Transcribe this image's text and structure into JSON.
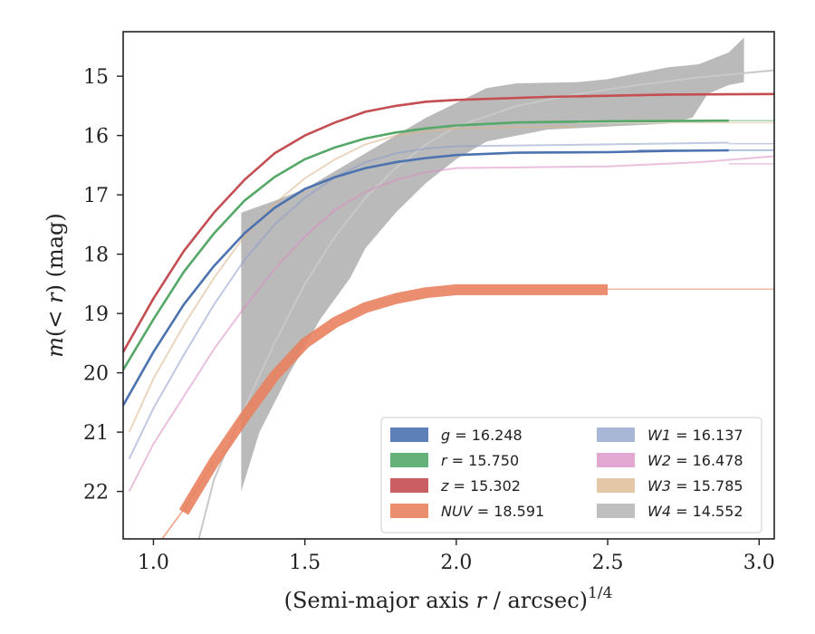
{
  "chart_data": {
    "type": "line",
    "xlabel": "(Semi-major axis r / arcsec)^(1/4)",
    "xlabel_parts": {
      "main": "(Semi-major axis ",
      "var": "r",
      "mid": " / arcsec)",
      "sup": "1/4"
    },
    "ylabel": "m(< r) (mag)",
    "ylabel_parts": {
      "m": "m",
      "open": "(",
      "lt": "< ",
      "r": "r",
      "close": ")",
      "unit": " (mag)"
    },
    "xlim": [
      0.9,
      3.05
    ],
    "ylim": [
      22.8,
      14.25
    ],
    "y_inverted": true,
    "x_ticks": [
      1.0,
      1.5,
      2.0,
      2.5,
      3.0
    ],
    "x_tick_labels": [
      "1.0",
      "1.5",
      "2.0",
      "2.5",
      "3.0"
    ],
    "y_ticks": [
      15,
      16,
      17,
      18,
      19,
      20,
      21,
      22
    ],
    "y_tick_labels": [
      "15",
      "16",
      "17",
      "18",
      "19",
      "20",
      "21",
      "22"
    ],
    "grid": false,
    "legend_position": "lower-right",
    "legend_columns": 2,
    "series": [
      {
        "key": "g",
        "name": "g = 16.248",
        "name_var": "g",
        "name_val": " = 16.248",
        "color": "#4c72b0",
        "total_mag": 16.248,
        "points": [
          [
            0.9,
            20.55
          ],
          [
            1.0,
            19.65
          ],
          [
            1.1,
            18.85
          ],
          [
            1.2,
            18.2
          ],
          [
            1.3,
            17.65
          ],
          [
            1.4,
            17.22
          ],
          [
            1.5,
            16.9
          ],
          [
            1.6,
            16.7
          ],
          [
            1.7,
            16.55
          ],
          [
            1.8,
            16.45
          ],
          [
            1.9,
            16.38
          ],
          [
            2.0,
            16.33
          ],
          [
            2.2,
            16.29
          ],
          [
            2.5,
            16.28
          ],
          [
            2.7,
            16.26
          ],
          [
            2.9,
            16.25
          ]
        ],
        "width": 2.5,
        "band": 0.06
      },
      {
        "key": "r",
        "name": "r = 15.750",
        "name_var": "r",
        "name_val": " = 15.750",
        "color": "#55a868",
        "total_mag": 15.75,
        "points": [
          [
            0.9,
            19.95
          ],
          [
            1.0,
            19.1
          ],
          [
            1.1,
            18.3
          ],
          [
            1.2,
            17.65
          ],
          [
            1.3,
            17.1
          ],
          [
            1.4,
            16.7
          ],
          [
            1.5,
            16.4
          ],
          [
            1.6,
            16.2
          ],
          [
            1.7,
            16.05
          ],
          [
            1.8,
            15.95
          ],
          [
            1.9,
            15.88
          ],
          [
            2.0,
            15.83
          ],
          [
            2.2,
            15.78
          ],
          [
            2.5,
            15.76
          ],
          [
            2.9,
            15.75
          ]
        ],
        "width": 2.5,
        "band": 0.06
      },
      {
        "key": "z",
        "name": "z = 15.302",
        "name_var": "z",
        "name_val": " = 15.302",
        "color": "#c44e52",
        "total_mag": 15.302,
        "points": [
          [
            0.9,
            19.65
          ],
          [
            1.0,
            18.75
          ],
          [
            1.1,
            17.95
          ],
          [
            1.2,
            17.3
          ],
          [
            1.3,
            16.75
          ],
          [
            1.4,
            16.3
          ],
          [
            1.5,
            16.0
          ],
          [
            1.6,
            15.78
          ],
          [
            1.7,
            15.6
          ],
          [
            1.8,
            15.5
          ],
          [
            1.9,
            15.43
          ],
          [
            2.0,
            15.4
          ],
          [
            2.3,
            15.35
          ],
          [
            2.7,
            15.31
          ],
          [
            3.05,
            15.3
          ]
        ],
        "width": 2.5,
        "band": 0.06
      },
      {
        "key": "NUV",
        "name": "NUV = 18.591",
        "name_var": "NUV",
        "name_val": " = 18.591",
        "color": "#e8825f",
        "total_mag": 18.591,
        "points": [
          [
            1.1,
            22.35
          ],
          [
            1.2,
            21.5
          ],
          [
            1.3,
            20.75
          ],
          [
            1.4,
            20.05
          ],
          [
            1.5,
            19.5
          ],
          [
            1.6,
            19.15
          ],
          [
            1.7,
            18.9
          ],
          [
            1.8,
            18.75
          ],
          [
            1.9,
            18.65
          ],
          [
            2.0,
            18.6
          ],
          [
            2.2,
            18.6
          ],
          [
            2.5,
            18.6
          ]
        ],
        "width": 5,
        "band": 0.4
      },
      {
        "key": "W1",
        "name": "W1 = 16.137",
        "name_var": "W1",
        "name_val": " = 16.137",
        "color": "#8c9dc8",
        "total_mag": 16.137,
        "points": [
          [
            0.92,
            21.45
          ],
          [
            1.0,
            20.6
          ],
          [
            1.1,
            19.7
          ],
          [
            1.2,
            18.85
          ],
          [
            1.3,
            18.1
          ],
          [
            1.4,
            17.5
          ],
          [
            1.5,
            17.05
          ],
          [
            1.6,
            16.7
          ],
          [
            1.7,
            16.45
          ],
          [
            1.8,
            16.3
          ],
          [
            1.9,
            16.22
          ],
          [
            2.0,
            16.18
          ],
          [
            2.5,
            16.15
          ],
          [
            2.9,
            16.12
          ]
        ],
        "width": 2,
        "band": 0.05
      },
      {
        "key": "W2",
        "name": "W2 = 16.478",
        "name_var": "W2",
        "name_val": " = 16.478",
        "color": "#da8bc3",
        "total_mag": 16.478,
        "points": [
          [
            0.92,
            22.0
          ],
          [
            1.0,
            21.2
          ],
          [
            1.1,
            20.4
          ],
          [
            1.2,
            19.6
          ],
          [
            1.3,
            18.9
          ],
          [
            1.4,
            18.25
          ],
          [
            1.5,
            17.7
          ],
          [
            1.6,
            17.25
          ],
          [
            1.7,
            16.95
          ],
          [
            1.8,
            16.75
          ],
          [
            1.9,
            16.62
          ],
          [
            2.0,
            16.55
          ],
          [
            2.5,
            16.52
          ],
          [
            2.8,
            16.45
          ],
          [
            3.05,
            16.35
          ]
        ],
        "width": 2,
        "band": 0.05
      },
      {
        "key": "W3",
        "name": "W3 = 15.785",
        "name_var": "W3",
        "name_val": " = 15.785",
        "color": "#d8b58a",
        "total_mag": 15.785,
        "points": [
          [
            0.92,
            21.0
          ],
          [
            1.0,
            20.1
          ],
          [
            1.1,
            19.2
          ],
          [
            1.2,
            18.4
          ],
          [
            1.3,
            17.7
          ],
          [
            1.4,
            17.15
          ],
          [
            1.5,
            16.72
          ],
          [
            1.6,
            16.4
          ],
          [
            1.7,
            16.15
          ],
          [
            1.8,
            16.0
          ],
          [
            1.9,
            15.93
          ],
          [
            2.0,
            15.88
          ],
          [
            2.2,
            15.86
          ],
          [
            2.4,
            15.85
          ]
        ],
        "width": 2,
        "band": 0.1
      },
      {
        "key": "W4",
        "name": "W4 = 14.552",
        "name_var": "W4",
        "name_val": " = 14.552",
        "color": "#a9a9a9",
        "total_mag": 14.552,
        "points": [
          [
            1.29,
            19.6
          ],
          [
            1.35,
            18.6
          ],
          [
            1.45,
            17.6
          ],
          [
            1.55,
            16.9
          ],
          [
            1.65,
            16.45
          ],
          [
            1.75,
            16.1
          ],
          [
            1.85,
            15.8
          ],
          [
            1.95,
            15.6
          ],
          [
            2.05,
            15.45
          ],
          [
            2.2,
            15.35
          ],
          [
            2.4,
            15.28
          ],
          [
            2.6,
            15.2
          ],
          [
            2.8,
            15.1
          ],
          [
            2.95,
            15.0
          ]
        ],
        "band_upper": [
          [
            1.29,
            17.3
          ],
          [
            1.4,
            17.1
          ],
          [
            1.5,
            16.9
          ],
          [
            1.6,
            16.6
          ],
          [
            1.7,
            16.3
          ],
          [
            1.8,
            16.0
          ],
          [
            1.9,
            15.7
          ],
          [
            2.0,
            15.45
          ],
          [
            2.1,
            15.2
          ],
          [
            2.2,
            15.12
          ],
          [
            2.4,
            15.1
          ],
          [
            2.5,
            15.05
          ],
          [
            2.6,
            14.95
          ],
          [
            2.7,
            14.85
          ],
          [
            2.8,
            14.8
          ],
          [
            2.9,
            14.6
          ],
          [
            2.95,
            14.35
          ]
        ],
        "band_lower": [
          [
            1.29,
            22.0
          ],
          [
            1.35,
            21.0
          ],
          [
            1.45,
            20.0
          ],
          [
            1.55,
            19.1
          ],
          [
            1.65,
            18.4
          ],
          [
            1.7,
            17.9
          ],
          [
            1.8,
            17.3
          ],
          [
            1.9,
            16.8
          ],
          [
            2.0,
            16.4
          ],
          [
            2.1,
            16.1
          ],
          [
            2.3,
            15.9
          ],
          [
            2.5,
            15.85
          ],
          [
            2.7,
            15.8
          ],
          [
            2.78,
            15.7
          ],
          [
            2.83,
            15.3
          ],
          [
            2.9,
            15.15
          ],
          [
            2.95,
            15.1
          ]
        ],
        "faint_curve": [
          [
            1.15,
            22.8
          ],
          [
            1.2,
            21.8
          ],
          [
            1.3,
            20.6
          ],
          [
            1.4,
            19.5
          ],
          [
            1.5,
            18.5
          ],
          [
            1.6,
            17.7
          ],
          [
            1.7,
            17.05
          ],
          [
            1.8,
            16.55
          ],
          [
            1.9,
            16.15
          ],
          [
            2.0,
            15.85
          ],
          [
            2.2,
            15.5
          ],
          [
            2.4,
            15.3
          ],
          [
            2.6,
            15.15
          ],
          [
            2.8,
            15.02
          ],
          [
            3.05,
            14.9
          ]
        ]
      }
    ],
    "model_curves": [
      {
        "color": "#f0a080",
        "points": [
          [
            1.0,
            23.0
          ],
          [
            1.1,
            22.3
          ],
          [
            1.2,
            21.5
          ]
        ],
        "width": 1.5
      },
      {
        "color": "#f2b8a3",
        "points": [
          [
            2.5,
            18.59
          ],
          [
            3.05,
            18.59
          ]
        ],
        "width": 1.5
      }
    ]
  }
}
